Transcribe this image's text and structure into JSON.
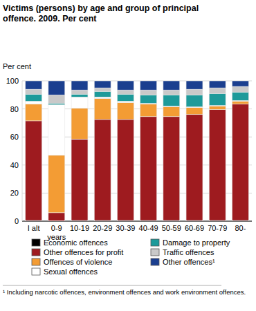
{
  "chart_data": {
    "type": "bar",
    "title": "Victims (persons) by age and group of principal offence. 2009. Per cent",
    "y_label": "Per cent",
    "annotations": [
      "¹ Including narcotic offences, environment offences and work environment offences."
    ],
    "stacked": true,
    "grid": true,
    "legend": "bottom",
    "categories": [
      "I alt",
      "0-9 years",
      "10-19",
      "20-29",
      "30-39",
      "40-49",
      "50-59",
      "60-69",
      "70-79",
      "80-"
    ],
    "ylim": [
      0,
      100
    ],
    "yticks": [
      0,
      20,
      40,
      60,
      80,
      100
    ],
    "series": [
      {
        "name": "Economic offences",
        "color": "#000000",
        "values": [
          0.5,
          0.3,
          0.5,
          0.5,
          0.5,
          0.5,
          0.5,
          0.5,
          0.5,
          0.5
        ]
      },
      {
        "name": "Other offences for profit",
        "color": "#9e1b1f",
        "values": [
          71,
          5.7,
          58,
          72,
          72,
          74,
          74,
          75.5,
          79,
          83
        ]
      },
      {
        "name": "Offences of violence",
        "color": "#f39c34",
        "values": [
          12,
          41,
          22,
          15,
          12,
          9,
          7,
          5,
          2.5,
          2
        ]
      },
      {
        "name": "Sexual offences",
        "color": "#ffffff",
        "values": [
          2,
          36,
          8,
          1,
          1,
          0.5,
          0.5,
          0.5,
          0.5,
          0.5
        ]
      },
      {
        "name": "Damage to property",
        "color": "#1d9a9a",
        "values": [
          5,
          1,
          2,
          4,
          5,
          6,
          8,
          8.5,
          8.5,
          6
        ]
      },
      {
        "name": "Traffic offences",
        "color": "#c9c9c9",
        "values": [
          3.5,
          6,
          3,
          2.5,
          3,
          3.5,
          3.5,
          4,
          4,
          4
        ]
      },
      {
        "name": "Other offences¹",
        "color": "#1b3f8f",
        "values": [
          6,
          10,
          6.5,
          5,
          6.5,
          6.5,
          6.5,
          6,
          5,
          4
        ]
      }
    ]
  }
}
